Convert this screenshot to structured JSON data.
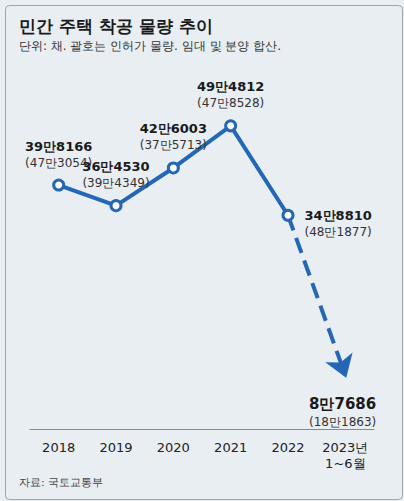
{
  "chart_data": {
    "type": "line",
    "title": "민간 주택 착공 물량 추이",
    "subtitle": "단위: 채. 괄호는 인허가 물량. 임대 및 분양 합산.",
    "annotations": [
      "자료: 국토교통부"
    ],
    "categories": [
      "2018",
      "2019",
      "2020",
      "2021",
      "2022",
      "2023년\n1~6월"
    ],
    "series": [
      {
        "values": [
          398166,
          364530,
          426003,
          494812,
          348810,
          null
        ],
        "value_labels": [
          "39만8166",
          "36만4530",
          "42만6003",
          "49만4812",
          "34만8810",
          null
        ],
        "permit_labels": [
          "(47만3054)",
          "(39만4349)",
          "(37만5713)",
          "(47만8528)",
          "(48만1877)",
          null
        ],
        "color": "#2367b5",
        "line_style": "solid",
        "marker": "circle"
      },
      {
        "values": [
          null,
          null,
          null,
          null,
          348810,
          87686
        ],
        "value_labels": [
          null,
          null,
          null,
          null,
          null,
          "8만7686"
        ],
        "permit_labels": [
          null,
          null,
          null,
          null,
          null,
          "(18만1863)"
        ],
        "color": "#2367b5",
        "line_style": "dashed",
        "marker": "arrow"
      }
    ],
    "ylim": [
      0,
      550000
    ],
    "grid": false,
    "data_labels": true,
    "tick_labels": "x"
  }
}
